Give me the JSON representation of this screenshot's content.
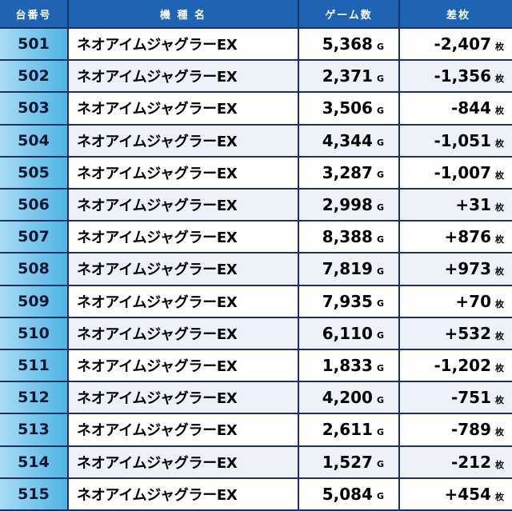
{
  "headers": {
    "number": "台番号",
    "model": "機 種 名",
    "games": "ゲーム数",
    "diff": "差枚"
  },
  "units": {
    "games": "G",
    "diff": "枚"
  },
  "rows": [
    {
      "no": "501",
      "model": "ネオアイムジャグラーEX",
      "games": "5,368",
      "diff": "-2,407"
    },
    {
      "no": "502",
      "model": "ネオアイムジャグラーEX",
      "games": "2,371",
      "diff": "-1,356"
    },
    {
      "no": "503",
      "model": "ネオアイムジャグラーEX",
      "games": "3,506",
      "diff": "-844"
    },
    {
      "no": "504",
      "model": "ネオアイムジャグラーEX",
      "games": "4,344",
      "diff": "-1,051"
    },
    {
      "no": "505",
      "model": "ネオアイムジャグラーEX",
      "games": "3,287",
      "diff": "-1,007"
    },
    {
      "no": "506",
      "model": "ネオアイムジャグラーEX",
      "games": "2,998",
      "diff": "+31"
    },
    {
      "no": "507",
      "model": "ネオアイムジャグラーEX",
      "games": "8,388",
      "diff": "+876"
    },
    {
      "no": "508",
      "model": "ネオアイムジャグラーEX",
      "games": "7,819",
      "diff": "+973"
    },
    {
      "no": "509",
      "model": "ネオアイムジャグラーEX",
      "games": "7,935",
      "diff": "+70"
    },
    {
      "no": "510",
      "model": "ネオアイムジャグラーEX",
      "games": "6,110",
      "diff": "+532"
    },
    {
      "no": "511",
      "model": "ネオアイムジャグラーEX",
      "games": "1,833",
      "diff": "-1,202"
    },
    {
      "no": "512",
      "model": "ネオアイムジャグラーEX",
      "games": "4,200",
      "diff": "-751"
    },
    {
      "no": "513",
      "model": "ネオアイムジャグラーEX",
      "games": "2,611",
      "diff": "-789"
    },
    {
      "no": "514",
      "model": "ネオアイムジャグラーEX",
      "games": "1,527",
      "diff": "-212"
    },
    {
      "no": "515",
      "model": "ネオアイムジャグラーEX",
      "games": "5,084",
      "diff": "+454"
    }
  ],
  "colors": {
    "header_bg": "#1e63b4",
    "grid_line": "#1e2f66",
    "row_alt_bg": "#eef1f8",
    "number_cell": "#76c6ec"
  }
}
